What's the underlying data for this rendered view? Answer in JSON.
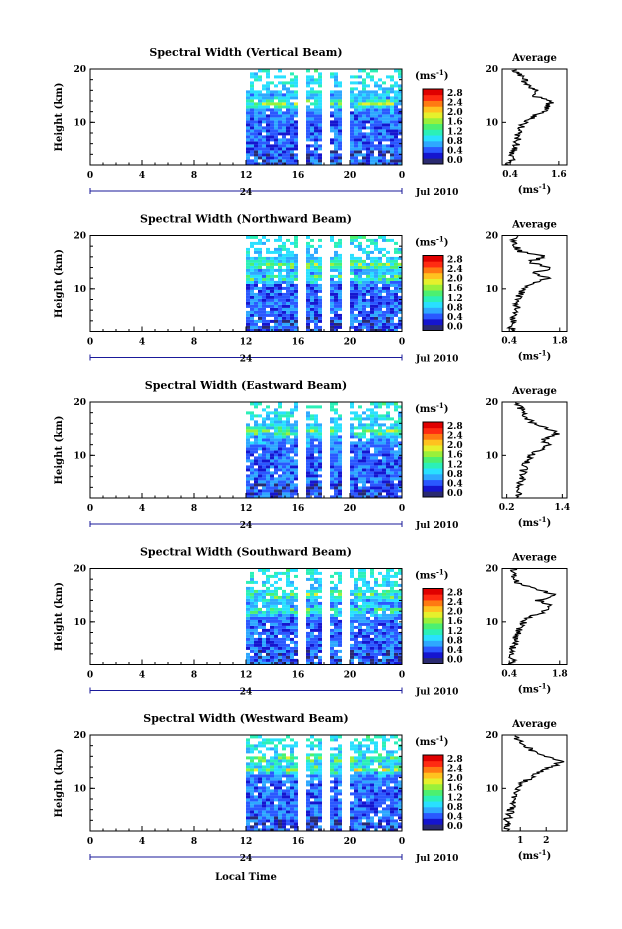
{
  "xlabel": "Local Time",
  "colorbar": {
    "unit": "(ms",
    "unit_exp": "-1",
    "tick_labels": [
      "2.8",
      "2.4",
      "2.0",
      "1.6",
      "1.2",
      "0.8",
      "0.4",
      "0.0"
    ],
    "colors": [
      "#2a2a70",
      "#1515cf",
      "#2a58ff",
      "#2ea8ff",
      "#29e0ff",
      "#2bf0b8",
      "#4cf070",
      "#9af03a",
      "#e6f02c",
      "#ffc21f",
      "#ff7a12",
      "#ff2b12",
      "#e00000"
    ]
  },
  "chart_data": [
    {
      "type": "heatmap",
      "title": "Spectral Width (Vertical Beam)",
      "ylabel": "Height (km)",
      "x_ticks": [
        "0",
        "4",
        "8",
        "12",
        "16",
        "20",
        "0"
      ],
      "date_label": "24",
      "month_label": "Jul 2010",
      "y_ticks": [
        "20",
        "10"
      ],
      "ylim": [
        2,
        20
      ],
      "data_start_hour": 12,
      "gaps_hour": [
        16.2,
        17.8,
        18.2,
        19.5
      ],
      "hot_layers_km": [
        13.5
      ],
      "profile": {
        "title": "Average",
        "x_ticks": [
          "0.4",
          "1.6"
        ],
        "xlim": [
          0.2,
          1.8
        ],
        "unit": "(ms",
        "unit_exp": "-1",
        "heights_km": [
          2,
          3,
          4,
          5,
          6,
          7,
          8,
          9,
          10,
          11,
          12,
          13,
          14,
          15,
          16,
          17,
          18,
          19,
          20
        ],
        "values": [
          0.35,
          0.45,
          0.4,
          0.5,
          0.55,
          0.58,
          0.6,
          0.65,
          0.75,
          0.95,
          1.2,
          1.3,
          1.45,
          0.9,
          1.0,
          0.8,
          0.75,
          0.6,
          0.5
        ]
      }
    },
    {
      "type": "heatmap",
      "title": "Spectral Width (Northward Beam)",
      "ylabel": "Height (km)",
      "x_ticks": [
        "0",
        "4",
        "8",
        "12",
        "16",
        "20",
        "0"
      ],
      "date_label": "24",
      "month_label": "Jul 2010",
      "y_ticks": [
        "20",
        "10"
      ],
      "ylim": [
        2,
        20
      ],
      "data_start_hour": 12,
      "gaps_hour": [
        16.2,
        17.8,
        18.2,
        19.5
      ],
      "hot_layers_km": [
        12,
        14.5
      ],
      "profile": {
        "title": "Average",
        "x_ticks": [
          "0.4",
          "1.8"
        ],
        "xlim": [
          0.2,
          2.0
        ],
        "unit": "(ms",
        "unit_exp": "-1",
        "heights_km": [
          2,
          3,
          4,
          5,
          6,
          7,
          8,
          9,
          10,
          11,
          12,
          13,
          14,
          15,
          16,
          17,
          18,
          19,
          20
        ],
        "values": [
          0.5,
          0.45,
          0.5,
          0.55,
          0.6,
          0.6,
          0.65,
          0.7,
          0.8,
          1.0,
          1.5,
          1.1,
          1.6,
          0.9,
          1.4,
          0.7,
          0.6,
          0.5,
          0.6
        ]
      }
    },
    {
      "type": "heatmap",
      "title": "Spectral Width (Eastward Beam)",
      "ylabel": "Height (km)",
      "x_ticks": [
        "0",
        "4",
        "8",
        "12",
        "16",
        "20",
        "0"
      ],
      "date_label": "24",
      "month_label": "Jul 2010",
      "y_ticks": [
        "20",
        "10"
      ],
      "ylim": [
        2,
        20
      ],
      "data_start_hour": 12,
      "gaps_hour": [
        16.2,
        17.8,
        18.2,
        19.5
      ],
      "hot_layers_km": [
        14.5
      ],
      "profile": {
        "title": "Average",
        "x_ticks": [
          "0.2",
          "1.4"
        ],
        "xlim": [
          0.1,
          1.5
        ],
        "unit": "(ms",
        "unit_exp": "-1",
        "heights_km": [
          2,
          3,
          4,
          5,
          6,
          7,
          8,
          9,
          10,
          11,
          12,
          13,
          14,
          15,
          16,
          17,
          18,
          19,
          20
        ],
        "values": [
          0.4,
          0.45,
          0.4,
          0.5,
          0.55,
          0.55,
          0.6,
          0.65,
          0.7,
          0.9,
          1.1,
          1.0,
          1.3,
          1.1,
          0.8,
          0.6,
          0.55,
          0.5,
          0.45
        ]
      }
    },
    {
      "type": "heatmap",
      "title": "Spectral Width (Southward Beam)",
      "ylabel": "Height (km)",
      "x_ticks": [
        "0",
        "4",
        "8",
        "12",
        "16",
        "20",
        "0"
      ],
      "date_label": "24",
      "month_label": "Jul 2010",
      "y_ticks": [
        "20",
        "10"
      ],
      "ylim": [
        2,
        20
      ],
      "data_start_hour": 12,
      "gaps_hour": [
        16.2,
        17.8,
        18.2,
        19.5
      ],
      "hot_layers_km": [
        12,
        15
      ],
      "profile": {
        "title": "Average",
        "x_ticks": [
          "0.4",
          "1.8"
        ],
        "xlim": [
          0.2,
          2.0
        ],
        "unit": "(ms",
        "unit_exp": "-1",
        "heights_km": [
          2,
          3,
          4,
          5,
          6,
          7,
          8,
          9,
          10,
          11,
          12,
          13,
          14,
          15,
          16,
          17,
          18,
          19,
          20
        ],
        "values": [
          0.45,
          0.5,
          0.45,
          0.5,
          0.55,
          0.6,
          0.65,
          0.7,
          0.8,
          1.0,
          1.4,
          1.6,
          1.2,
          1.7,
          1.2,
          0.7,
          0.5,
          0.6,
          0.5
        ]
      }
    },
    {
      "type": "heatmap",
      "title": "Spectral Width (Westward Beam)",
      "ylabel": "Height (km)",
      "x_ticks": [
        "0",
        "4",
        "8",
        "12",
        "16",
        "20",
        "0"
      ],
      "date_label": "24",
      "month_label": "Jul 2010",
      "y_ticks": [
        "20",
        "10"
      ],
      "ylim": [
        2,
        20
      ],
      "data_start_hour": 12,
      "gaps_hour": [
        16.2,
        17.8,
        18.2,
        19.5
      ],
      "hot_layers_km": [
        13.5,
        15.5
      ],
      "profile": {
        "title": "Average",
        "x_ticks": [
          "1",
          "2"
        ],
        "xlim": [
          0.3,
          2.8
        ],
        "unit": "(ms",
        "unit_exp": "-1",
        "heights_km": [
          2,
          3,
          4,
          5,
          6,
          7,
          8,
          9,
          10,
          11,
          12,
          13,
          14,
          15,
          16,
          17,
          18,
          19,
          20
        ],
        "values": [
          0.5,
          0.55,
          0.5,
          0.6,
          0.65,
          0.7,
          0.75,
          0.8,
          0.9,
          1.1,
          1.4,
          1.7,
          2.2,
          2.6,
          1.9,
          1.5,
          1.2,
          0.9,
          0.8
        ]
      }
    }
  ]
}
